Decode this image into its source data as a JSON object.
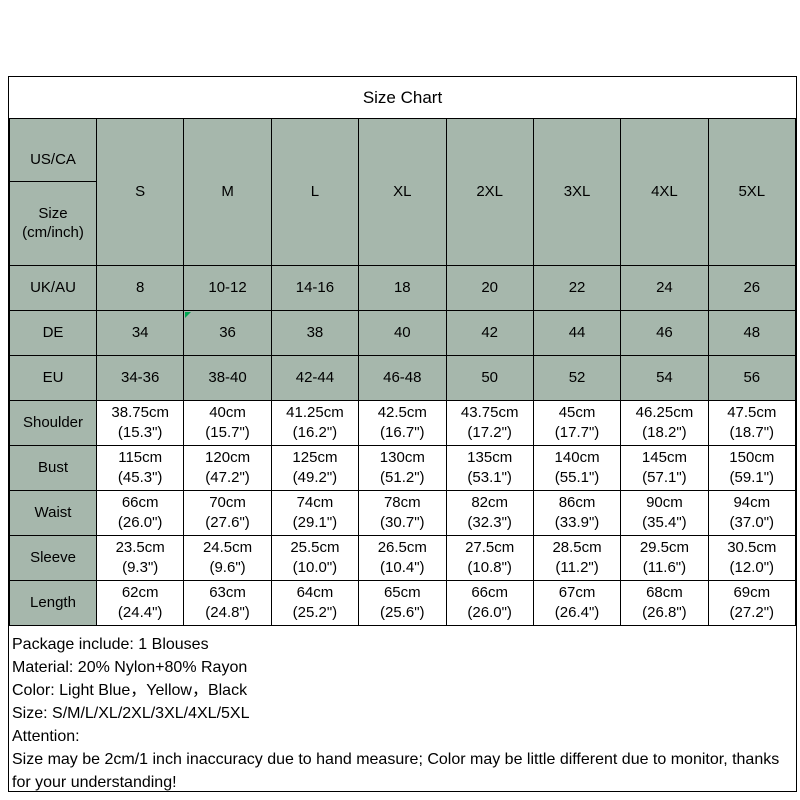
{
  "title": "Size Chart",
  "colors": {
    "table_header_bg": "#a6b7ac",
    "border": "#000000",
    "flag_marker": "#00a651",
    "background": "#ffffff"
  },
  "table_meta": {
    "corner_top": "US/CA",
    "corner_bottom": "Size (cm/inch)",
    "shaded_row_labels": [
      "UK/AU",
      "DE",
      "EU"
    ],
    "flag_marker": {
      "row": "DE",
      "col_index": 1
    }
  },
  "chart_data": {
    "type": "table",
    "title": "Size Chart",
    "columns": [
      "US/CA Size (cm/inch)",
      "S",
      "M",
      "L",
      "XL",
      "2XL",
      "3XL",
      "4XL",
      "5XL"
    ],
    "rows": [
      [
        "UK/AU",
        "8",
        "10-12",
        "14-16",
        "18",
        "20",
        "22",
        "24",
        "26"
      ],
      [
        "DE",
        "34",
        "36",
        "38",
        "40",
        "42",
        "44",
        "46",
        "48"
      ],
      [
        "EU",
        "34-36",
        "38-40",
        "42-44",
        "46-48",
        "50",
        "52",
        "54",
        "56"
      ],
      [
        "Shoulder",
        "38.75cm (15.3\")",
        "40cm (15.7\")",
        "41.25cm (16.2\")",
        "42.5cm (16.7\")",
        "43.75cm (17.2\")",
        "45cm (17.7\")",
        "46.25cm (18.2\")",
        "47.5cm (18.7\")"
      ],
      [
        "Bust",
        "115cm (45.3\")",
        "120cm (47.2\")",
        "125cm (49.2\")",
        "130cm (51.2\")",
        "135cm (53.1\")",
        "140cm (55.1\")",
        "145cm (57.1\")",
        "150cm (59.1\")"
      ],
      [
        "Waist",
        "66cm (26.0\")",
        "70cm (27.6\")",
        "74cm (29.1\")",
        "78cm (30.7\")",
        "82cm (32.3\")",
        "86cm (33.9\")",
        "90cm (35.4\")",
        "94cm (37.0\")"
      ],
      [
        "Sleeve",
        "23.5cm (9.3\")",
        "24.5cm (9.6\")",
        "25.5cm (10.0\")",
        "26.5cm (10.4\")",
        "27.5cm (10.8\")",
        "28.5cm (11.2\")",
        "29.5cm (11.6\")",
        "30.5cm (12.0\")"
      ],
      [
        "Length",
        "62cm (24.4\")",
        "63cm (24.8\")",
        "64cm (25.2\")",
        "65cm (25.6\")",
        "66cm (26.0\")",
        "67cm (26.4\")",
        "68cm (26.8\")",
        "69cm (27.2\")"
      ]
    ]
  },
  "details": {
    "package": "Package include: 1 Blouses",
    "material": "Material: 20% Nylon+80% Rayon",
    "color": "Color: Light Blue，Yellow，Black",
    "size": "Size: S/M/L/XL/2XL/3XL/4XL/5XL",
    "attention_label": "Attention:",
    "attention_note": "Size may be 2cm/1 inch inaccuracy due to hand measure; Color may be little different due to monitor, thanks for your understanding!"
  }
}
